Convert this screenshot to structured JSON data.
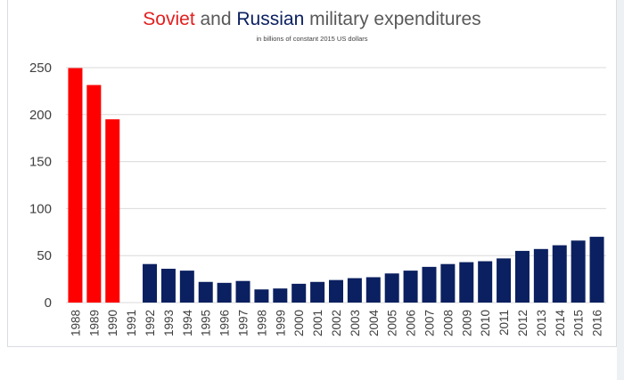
{
  "colors": {
    "soviet": "#fe0000",
    "russian": "#0b2060",
    "title_default": "#595959",
    "gridline": "#d9d9d9",
    "tick_text": "#404040"
  },
  "chart_data": {
    "type": "bar",
    "title": {
      "part1": "Soviet",
      "part2": " and ",
      "part3": "Russian",
      "part4": " military expenditures"
    },
    "subtitle": "in billions of constant 2015 US dollars",
    "xlabel": "",
    "ylabel": "",
    "ylim": [
      0,
      250
    ],
    "yticks": [
      0,
      50,
      100,
      150,
      200,
      250
    ],
    "grid": true,
    "legend": "none",
    "categories": [
      "1988",
      "1989",
      "1990",
      "1991",
      "1992",
      "1993",
      "1994",
      "1995",
      "1996",
      "1997",
      "1998",
      "1999",
      "2000",
      "2001",
      "2002",
      "2003",
      "2004",
      "2005",
      "2006",
      "2007",
      "2008",
      "2009",
      "2010",
      "2011",
      "2012",
      "2013",
      "2014",
      "2015",
      "2016"
    ],
    "series": [
      {
        "name": "Soviet",
        "values": [
          249.5,
          231.5,
          195,
          null,
          null,
          null,
          null,
          null,
          null,
          null,
          null,
          null,
          null,
          null,
          null,
          null,
          null,
          null,
          null,
          null,
          null,
          null,
          null,
          null,
          null,
          null,
          null,
          null,
          null
        ]
      },
      {
        "name": "Russian",
        "values": [
          null,
          null,
          null,
          null,
          41,
          36,
          34,
          22,
          21,
          23,
          14,
          15,
          20,
          22,
          24,
          26,
          27,
          31,
          34,
          38,
          41,
          43,
          44,
          47,
          55,
          57,
          61,
          66,
          70
        ]
      }
    ]
  }
}
